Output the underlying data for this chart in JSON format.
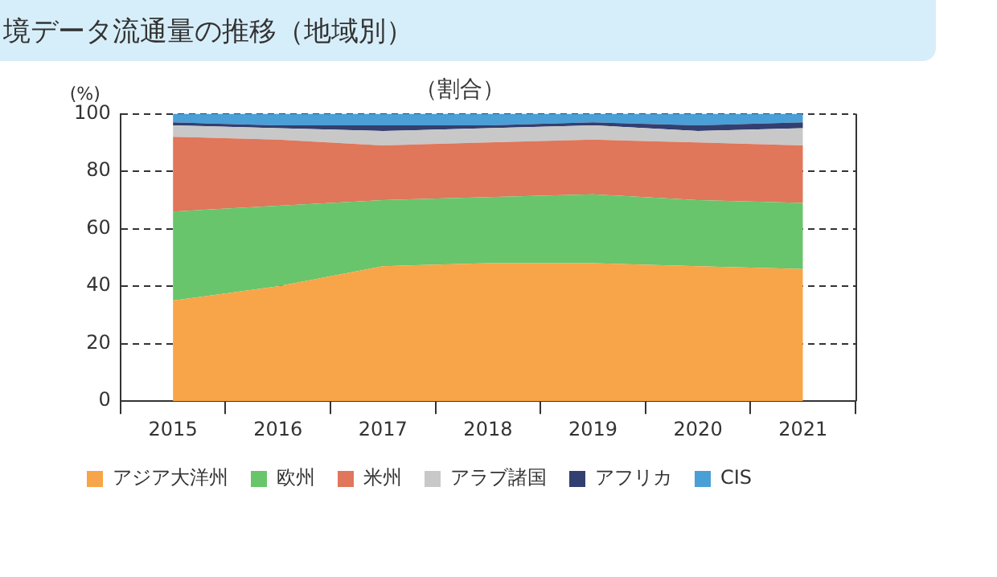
{
  "chart_data": {
    "type": "area",
    "stacked": true,
    "title": "境データ流通量の推移（地域別）",
    "subtitle": "（割合）",
    "ylabel": "(%)",
    "categories": [
      "2015",
      "2016",
      "2017",
      "2018",
      "2019",
      "2020",
      "2021"
    ],
    "series": [
      {
        "name": "アジア大洋州",
        "color": "#f8a448",
        "values": [
          35,
          40,
          47,
          48,
          48,
          47,
          46
        ]
      },
      {
        "name": "欧州",
        "color": "#68c56b",
        "values": [
          31,
          28,
          23,
          23,
          24,
          23,
          23
        ]
      },
      {
        "name": "米州",
        "color": "#e0765a",
        "values": [
          26,
          23,
          19,
          19,
          19,
          20,
          20
        ]
      },
      {
        "name": "アラブ諸国",
        "color": "#c8c8c8",
        "values": [
          4,
          4,
          5,
          5,
          5,
          4,
          6
        ]
      },
      {
        "name": "アフリカ",
        "color": "#333f70",
        "values": [
          1,
          1,
          2,
          1,
          1,
          2,
          2
        ]
      },
      {
        "name": "CIS",
        "color": "#4a9fd6",
        "values": [
          3,
          4,
          4,
          4,
          3,
          4,
          3
        ]
      }
    ],
    "ylim": [
      0,
      100
    ],
    "yticks": [
      0,
      20,
      40,
      60,
      80,
      100
    ],
    "grid": "y",
    "legend": "bottom"
  }
}
